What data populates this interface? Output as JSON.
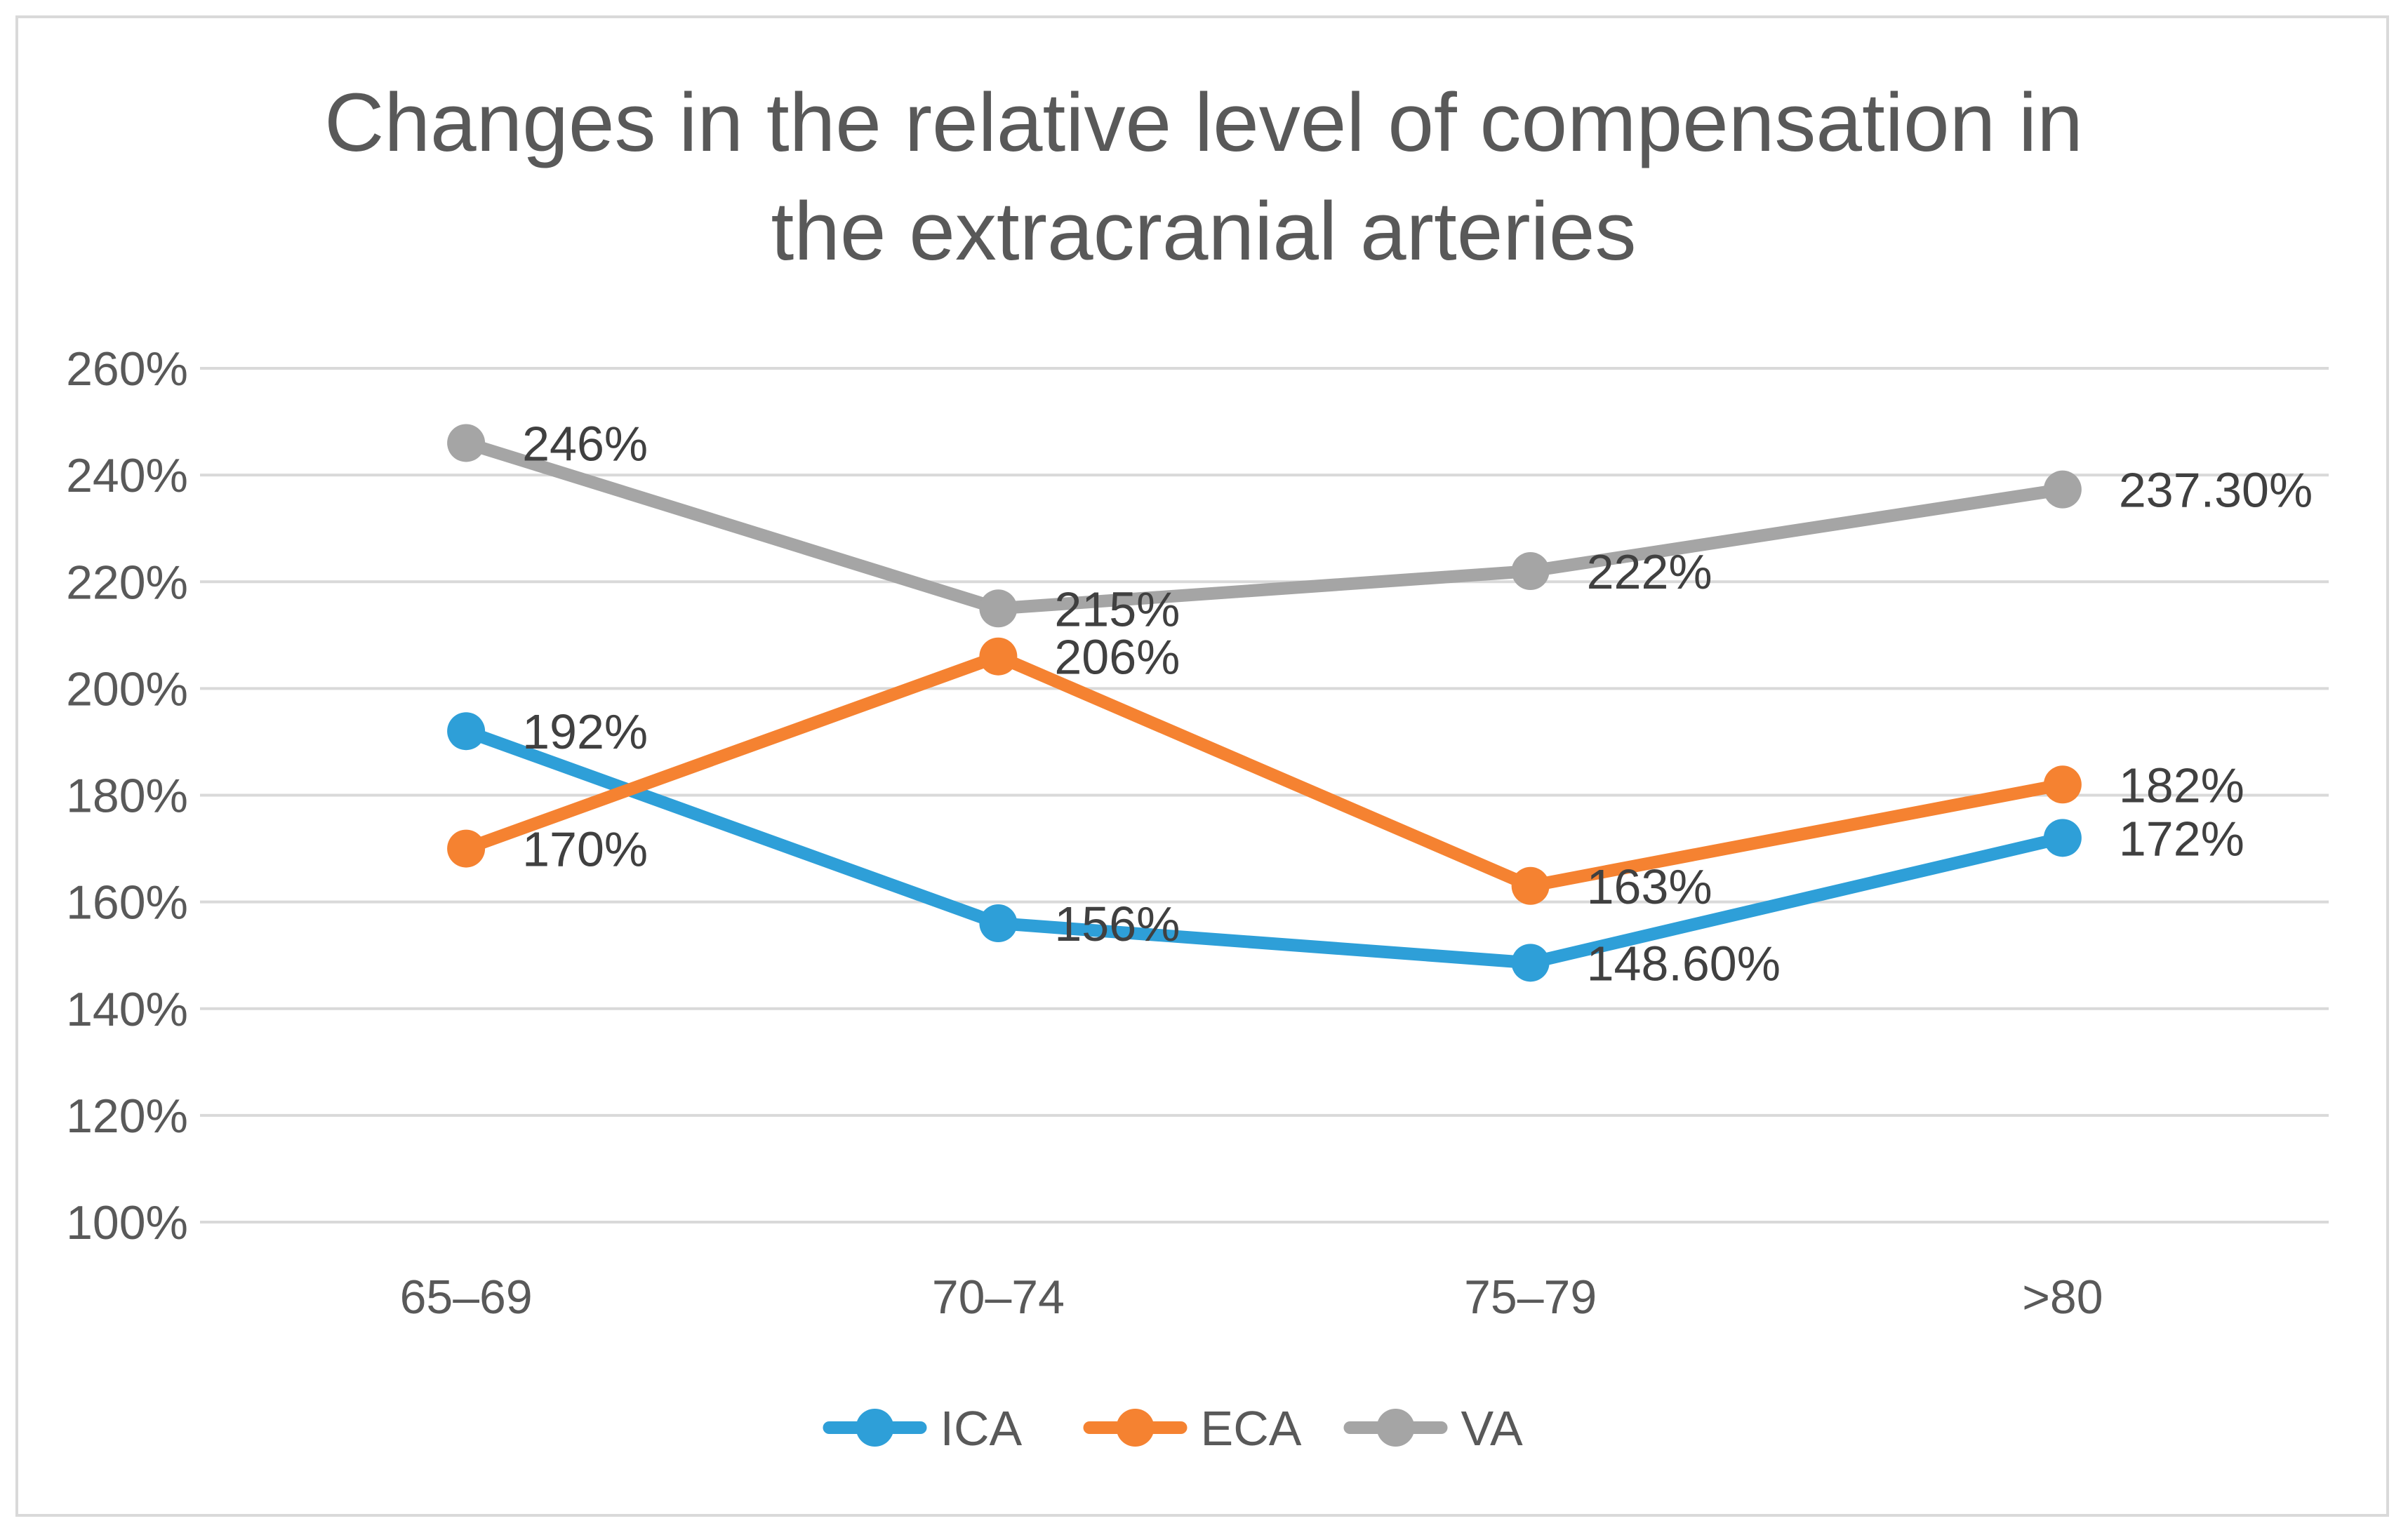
{
  "chart_data": {
    "type": "line",
    "title_lines": [
      "Changes in the relative level of compensation in",
      "the extracranial arteries"
    ],
    "xlabel": "",
    "ylabel": "",
    "categories": [
      "65–69",
      "70–74",
      "75–79",
      ">80"
    ],
    "ylim": [
      100,
      260
    ],
    "yticks": [
      100,
      120,
      140,
      160,
      180,
      200,
      220,
      240,
      260
    ],
    "ytick_labels": [
      "100%",
      "120%",
      "140%",
      "160%",
      "180%",
      "200%",
      "220%",
      "240%",
      "260%"
    ],
    "grid": true,
    "legend_position": "bottom",
    "series": [
      {
        "name": "ICA",
        "color": "#2e9fd8",
        "values": [
          192,
          156,
          148.6,
          172
        ],
        "labels": [
          "192%",
          "156%",
          "148.60%",
          "172%"
        ]
      },
      {
        "name": "ECA",
        "color": "#f58231",
        "values": [
          170,
          206,
          163,
          182
        ],
        "labels": [
          "170%",
          "206%",
          "163%",
          "182%"
        ]
      },
      {
        "name": "VA",
        "color": "#a5a5a5",
        "values": [
          246,
          215,
          222,
          237.3
        ],
        "labels": [
          "246%",
          "215%",
          "222%",
          "237.30%"
        ]
      }
    ]
  }
}
